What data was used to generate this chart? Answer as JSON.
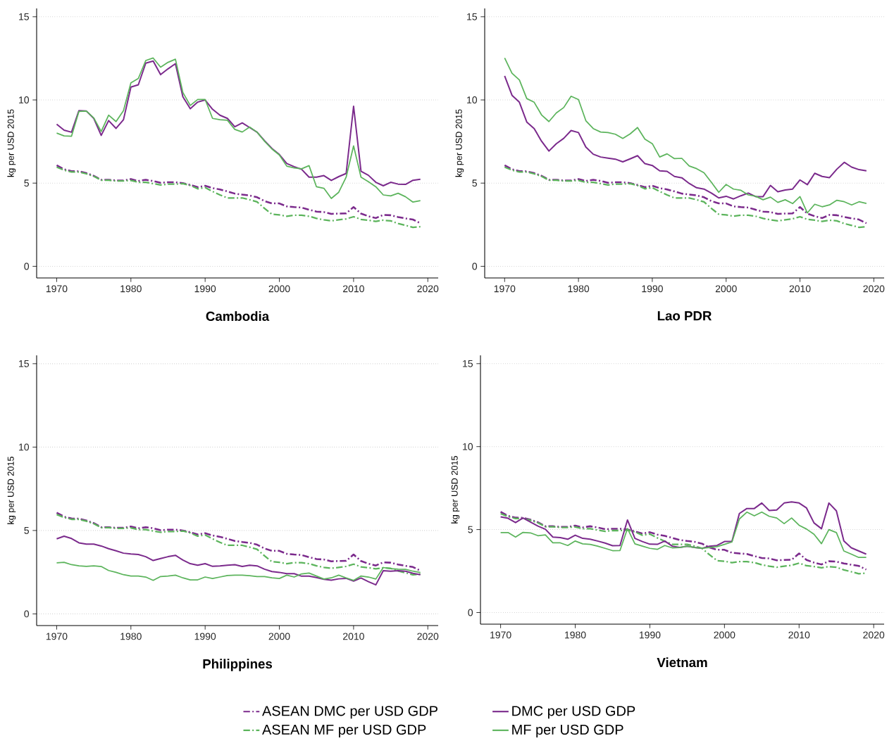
{
  "chart_data": [
    {
      "type": "line",
      "title": "Cambodia",
      "ylabel": "kg per USD 2015",
      "xlim": [
        1967.3,
        2021.4
      ],
      "ylim": [
        -0.7,
        15.5
      ],
      "xticks": [
        1970,
        1980,
        1990,
        2000,
        2010,
        2020
      ],
      "yticks": [
        0,
        5,
        10,
        15
      ],
      "grid": "y",
      "x": [
        1970,
        1971,
        1972,
        1973,
        1974,
        1975,
        1976,
        1977,
        1978,
        1979,
        1980,
        1981,
        1982,
        1983,
        1984,
        1985,
        1986,
        1987,
        1988,
        1989,
        1990,
        1991,
        1992,
        1993,
        1994,
        1995,
        1996,
        1997,
        1998,
        1999,
        2000,
        2001,
        2002,
        2003,
        2004,
        2005,
        2006,
        2007,
        2008,
        2009,
        2010,
        2011,
        2012,
        2013,
        2014,
        2015,
        2016,
        2017,
        2018,
        2019
      ],
      "series": [
        {
          "color": "#7b2a8c",
          "line_style": "dashed",
          "values": [
            6.07,
            5.83,
            5.72,
            5.71,
            5.6,
            5.44,
            5.2,
            5.2,
            5.16,
            5.16,
            5.24,
            5.13,
            5.2,
            5.13,
            5.02,
            5.05,
            5.05,
            5.0,
            4.89,
            4.76,
            4.84,
            4.7,
            4.62,
            4.5,
            4.37,
            4.31,
            4.26,
            4.15,
            3.92,
            3.78,
            3.78,
            3.6,
            3.56,
            3.53,
            3.4,
            3.29,
            3.26,
            3.15,
            3.17,
            3.18,
            3.56,
            3.17,
            3.01,
            2.9,
            3.09,
            3.07,
            2.96,
            2.88,
            2.81,
            2.59
          ]
        },
        {
          "color": "#5cb45c",
          "line_style": "dashed",
          "values": [
            5.96,
            5.78,
            5.67,
            5.67,
            5.56,
            5.41,
            5.17,
            5.17,
            5.13,
            5.13,
            5.16,
            5.05,
            5.05,
            4.97,
            4.89,
            4.94,
            4.94,
            4.97,
            4.86,
            4.66,
            4.73,
            4.5,
            4.29,
            4.11,
            4.11,
            4.11,
            4.0,
            3.87,
            3.48,
            3.13,
            3.09,
            3.01,
            3.07,
            3.07,
            3.01,
            2.88,
            2.79,
            2.73,
            2.79,
            2.85,
            2.98,
            2.82,
            2.77,
            2.7,
            2.77,
            2.73,
            2.57,
            2.46,
            2.34,
            2.38
          ]
        },
        {
          "color": "#7b2a8c",
          "line_style": "solid",
          "values": [
            8.54,
            8.18,
            8.06,
            9.36,
            9.33,
            8.89,
            7.87,
            8.76,
            8.29,
            8.81,
            10.77,
            10.91,
            12.21,
            12.34,
            11.52,
            11.87,
            12.18,
            10.19,
            9.47,
            9.87,
            10.0,
            9.44,
            9.08,
            8.89,
            8.39,
            8.62,
            8.34,
            8.06,
            7.55,
            7.08,
            6.72,
            6.18,
            5.99,
            5.83,
            5.36,
            5.36,
            5.45,
            5.16,
            5.39,
            5.58,
            9.62,
            5.71,
            5.47,
            5.05,
            4.84,
            5.05,
            4.94,
            4.92,
            5.17,
            5.23
          ]
        },
        {
          "color": "#5cb45c",
          "line_style": "solid",
          "values": [
            8.01,
            7.84,
            7.82,
            9.31,
            9.33,
            8.92,
            8.1,
            9.09,
            8.7,
            9.36,
            11.03,
            11.29,
            12.37,
            12.52,
            11.97,
            12.26,
            12.45,
            10.45,
            9.67,
            10.03,
            10.03,
            8.89,
            8.81,
            8.78,
            8.23,
            8.07,
            8.37,
            8.06,
            7.52,
            7.05,
            6.69,
            6.02,
            5.91,
            5.86,
            6.05,
            4.78,
            4.69,
            4.08,
            4.45,
            5.36,
            7.24,
            5.36,
            5.08,
            4.78,
            4.29,
            4.23,
            4.39,
            4.18,
            3.86,
            3.95
          ]
        }
      ]
    },
    {
      "type": "line",
      "title": "Lao PDR",
      "ylabel": "kg per USD 2015",
      "xlim": [
        1967.3,
        2021.4
      ],
      "ylim": [
        -0.7,
        15.5
      ],
      "xticks": [
        1970,
        1980,
        1990,
        2000,
        2010,
        2020
      ],
      "yticks": [
        0,
        5,
        10,
        15
      ],
      "grid": "y",
      "x": [
        1970,
        1971,
        1972,
        1973,
        1974,
        1975,
        1976,
        1977,
        1978,
        1979,
        1980,
        1981,
        1982,
        1983,
        1984,
        1985,
        1986,
        1987,
        1988,
        1989,
        1990,
        1991,
        1992,
        1993,
        1994,
        1995,
        1996,
        1997,
        1998,
        1999,
        2000,
        2001,
        2002,
        2003,
        2004,
        2005,
        2006,
        2007,
        2008,
        2009,
        2010,
        2011,
        2012,
        2013,
        2014,
        2015,
        2016,
        2017,
        2018,
        2019
      ],
      "series": [
        {
          "color": "#7b2a8c",
          "line_style": "dashed",
          "values": [
            6.07,
            5.83,
            5.72,
            5.71,
            5.6,
            5.44,
            5.2,
            5.2,
            5.16,
            5.16,
            5.24,
            5.13,
            5.2,
            5.13,
            5.02,
            5.05,
            5.05,
            5.0,
            4.89,
            4.76,
            4.84,
            4.7,
            4.62,
            4.5,
            4.37,
            4.31,
            4.26,
            4.15,
            3.92,
            3.78,
            3.78,
            3.6,
            3.56,
            3.53,
            3.4,
            3.29,
            3.26,
            3.15,
            3.17,
            3.18,
            3.56,
            3.17,
            3.01,
            2.9,
            3.09,
            3.07,
            2.96,
            2.88,
            2.81,
            2.59
          ]
        },
        {
          "color": "#5cb45c",
          "line_style": "dashed",
          "values": [
            5.96,
            5.78,
            5.67,
            5.67,
            5.56,
            5.41,
            5.17,
            5.17,
            5.13,
            5.13,
            5.16,
            5.05,
            5.05,
            4.97,
            4.89,
            4.94,
            4.94,
            4.97,
            4.86,
            4.66,
            4.73,
            4.5,
            4.29,
            4.11,
            4.11,
            4.11,
            4.0,
            3.87,
            3.48,
            3.13,
            3.09,
            3.01,
            3.07,
            3.07,
            3.01,
            2.88,
            2.79,
            2.73,
            2.79,
            2.85,
            2.98,
            2.82,
            2.77,
            2.7,
            2.77,
            2.73,
            2.57,
            2.46,
            2.34,
            2.38
          ]
        },
        {
          "color": "#7b2a8c",
          "line_style": "solid",
          "values": [
            11.44,
            10.28,
            9.86,
            8.67,
            8.28,
            7.52,
            6.93,
            7.37,
            7.69,
            8.16,
            8.04,
            7.17,
            6.74,
            6.57,
            6.5,
            6.44,
            6.28,
            6.46,
            6.65,
            6.17,
            6.06,
            5.74,
            5.71,
            5.4,
            5.32,
            4.98,
            4.72,
            4.64,
            4.4,
            4.11,
            4.21,
            4.05,
            4.24,
            4.4,
            4.19,
            4.19,
            4.86,
            4.48,
            4.59,
            4.64,
            5.19,
            4.91,
            5.59,
            5.4,
            5.33,
            5.84,
            6.25,
            5.96,
            5.81,
            5.74
          ]
        },
        {
          "color": "#5cb45c",
          "line_style": "solid",
          "values": [
            12.52,
            11.6,
            11.2,
            10.08,
            9.86,
            9.1,
            8.7,
            9.22,
            9.54,
            10.22,
            10.02,
            8.75,
            8.28,
            8.07,
            8.04,
            7.94,
            7.69,
            7.96,
            8.34,
            7.64,
            7.37,
            6.57,
            6.76,
            6.47,
            6.49,
            6.03,
            5.87,
            5.62,
            5.05,
            4.45,
            4.92,
            4.64,
            4.57,
            4.29,
            4.21,
            4.0,
            4.16,
            3.84,
            4.0,
            3.77,
            4.19,
            3.21,
            3.73,
            3.58,
            3.69,
            3.97,
            3.88,
            3.69,
            3.88,
            3.78
          ]
        }
      ]
    },
    {
      "type": "line",
      "title": "Philippines",
      "ylabel": "kg per USD 2015",
      "xlim": [
        1967.3,
        2021.4
      ],
      "ylim": [
        -0.7,
        15.5
      ],
      "xticks": [
        1970,
        1980,
        1990,
        2000,
        2010,
        2020
      ],
      "yticks": [
        0,
        5,
        10,
        15
      ],
      "grid": "y",
      "x": [
        1970,
        1971,
        1972,
        1973,
        1974,
        1975,
        1976,
        1977,
        1978,
        1979,
        1980,
        1981,
        1982,
        1983,
        1984,
        1985,
        1986,
        1987,
        1988,
        1989,
        1990,
        1991,
        1992,
        1993,
        1994,
        1995,
        1996,
        1997,
        1998,
        1999,
        2000,
        2001,
        2002,
        2003,
        2004,
        2005,
        2006,
        2007,
        2008,
        2009,
        2010,
        2011,
        2012,
        2013,
        2014,
        2015,
        2016,
        2017,
        2018,
        2019
      ],
      "series": [
        {
          "color": "#7b2a8c",
          "line_style": "dashed",
          "values": [
            6.07,
            5.83,
            5.72,
            5.71,
            5.6,
            5.44,
            5.2,
            5.2,
            5.16,
            5.16,
            5.24,
            5.13,
            5.2,
            5.13,
            5.02,
            5.05,
            5.05,
            5.0,
            4.89,
            4.76,
            4.84,
            4.7,
            4.62,
            4.5,
            4.37,
            4.31,
            4.26,
            4.15,
            3.92,
            3.78,
            3.78,
            3.6,
            3.56,
            3.53,
            3.4,
            3.29,
            3.26,
            3.15,
            3.17,
            3.18,
            3.56,
            3.17,
            3.01,
            2.9,
            3.09,
            3.07,
            2.96,
            2.88,
            2.81,
            2.59
          ]
        },
        {
          "color": "#5cb45c",
          "line_style": "dashed",
          "values": [
            5.96,
            5.78,
            5.67,
            5.67,
            5.56,
            5.41,
            5.17,
            5.17,
            5.13,
            5.13,
            5.16,
            5.05,
            5.05,
            4.97,
            4.89,
            4.94,
            4.94,
            4.97,
            4.86,
            4.66,
            4.73,
            4.5,
            4.29,
            4.11,
            4.11,
            4.11,
            4.0,
            3.87,
            3.48,
            3.13,
            3.09,
            3.01,
            3.07,
            3.07,
            3.01,
            2.88,
            2.79,
            2.73,
            2.79,
            2.85,
            2.98,
            2.82,
            2.77,
            2.7,
            2.77,
            2.73,
            2.57,
            2.46,
            2.34,
            2.38
          ]
        },
        {
          "color": "#7b2a8c",
          "line_style": "solid",
          "values": [
            4.5,
            4.66,
            4.52,
            4.26,
            4.18,
            4.18,
            4.07,
            3.91,
            3.78,
            3.64,
            3.59,
            3.56,
            3.43,
            3.2,
            3.32,
            3.43,
            3.51,
            3.23,
            3.01,
            2.92,
            3.01,
            2.85,
            2.88,
            2.92,
            2.95,
            2.84,
            2.92,
            2.88,
            2.68,
            2.54,
            2.49,
            2.41,
            2.41,
            2.26,
            2.26,
            2.18,
            2.07,
            2.02,
            2.1,
            2.13,
            1.97,
            2.15,
            1.93,
            1.74,
            2.59,
            2.56,
            2.59,
            2.56,
            2.43,
            2.35
          ]
        },
        {
          "color": "#5cb45c",
          "line_style": "solid",
          "values": [
            3.06,
            3.09,
            2.95,
            2.88,
            2.85,
            2.88,
            2.84,
            2.6,
            2.49,
            2.35,
            2.27,
            2.27,
            2.21,
            2.01,
            2.24,
            2.27,
            2.32,
            2.16,
            2.04,
            2.04,
            2.21,
            2.12,
            2.21,
            2.3,
            2.32,
            2.32,
            2.29,
            2.24,
            2.24,
            2.16,
            2.12,
            2.32,
            2.21,
            2.4,
            2.45,
            2.27,
            2.09,
            2.16,
            2.32,
            2.16,
            2.01,
            2.27,
            2.21,
            2.09,
            2.78,
            2.71,
            2.68,
            2.67,
            2.56,
            2.48
          ]
        }
      ]
    },
    {
      "type": "line",
      "title": "Vietnam",
      "ylabel": "kg per USD 2015",
      "xlim": [
        1967.3,
        2021.4
      ],
      "ylim": [
        -0.7,
        15.5
      ],
      "xticks": [
        1970,
        1980,
        1990,
        2000,
        2010,
        2020
      ],
      "yticks": [
        0,
        5,
        10,
        15
      ],
      "grid": "y",
      "legend": "bottom",
      "x": [
        1970,
        1971,
        1972,
        1973,
        1974,
        1975,
        1976,
        1977,
        1978,
        1979,
        1980,
        1981,
        1982,
        1983,
        1984,
        1985,
        1986,
        1987,
        1988,
        1989,
        1990,
        1991,
        1992,
        1993,
        1994,
        1995,
        1996,
        1997,
        1998,
        1999,
        2000,
        2001,
        2002,
        2003,
        2004,
        2005,
        2006,
        2007,
        2008,
        2009,
        2010,
        2011,
        2012,
        2013,
        2014,
        2015,
        2016,
        2017,
        2018,
        2019
      ],
      "series": [
        {
          "name": "ASEAN DMC per USD GDP",
          "color": "#7b2a8c",
          "line_style": "dashed",
          "values": [
            6.07,
            5.83,
            5.72,
            5.71,
            5.6,
            5.44,
            5.2,
            5.2,
            5.16,
            5.16,
            5.24,
            5.13,
            5.2,
            5.13,
            5.02,
            5.05,
            5.05,
            5.0,
            4.89,
            4.76,
            4.84,
            4.7,
            4.62,
            4.5,
            4.37,
            4.31,
            4.26,
            4.15,
            3.92,
            3.78,
            3.78,
            3.6,
            3.56,
            3.53,
            3.4,
            3.29,
            3.26,
            3.15,
            3.17,
            3.18,
            3.56,
            3.17,
            3.01,
            2.9,
            3.09,
            3.07,
            2.96,
            2.88,
            2.81,
            2.59
          ]
        },
        {
          "name": "ASEAN MF per USD GDP",
          "color": "#5cb45c",
          "line_style": "dashed",
          "values": [
            5.96,
            5.78,
            5.67,
            5.67,
            5.56,
            5.41,
            5.17,
            5.17,
            5.13,
            5.13,
            5.16,
            5.05,
            5.05,
            4.97,
            4.89,
            4.94,
            4.94,
            4.97,
            4.86,
            4.66,
            4.73,
            4.5,
            4.29,
            4.11,
            4.11,
            4.11,
            4.0,
            3.87,
            3.48,
            3.13,
            3.09,
            3.01,
            3.07,
            3.07,
            3.01,
            2.88,
            2.79,
            2.73,
            2.79,
            2.85,
            2.98,
            2.82,
            2.77,
            2.7,
            2.77,
            2.73,
            2.57,
            2.46,
            2.34,
            2.38
          ]
        },
        {
          "name": "DMC per USD GDP",
          "color": "#7b2a8c",
          "line_style": "solid",
          "values": [
            5.77,
            5.68,
            5.42,
            5.7,
            5.45,
            5.21,
            5.02,
            4.55,
            4.52,
            4.42,
            4.66,
            4.47,
            4.42,
            4.31,
            4.19,
            4.03,
            4.04,
            5.58,
            4.47,
            4.28,
            4.12,
            4.11,
            4.31,
            4.0,
            3.92,
            4.0,
            3.92,
            3.87,
            4.0,
            4.04,
            4.28,
            4.28,
            5.97,
            6.27,
            6.27,
            6.6,
            6.15,
            6.18,
            6.6,
            6.67,
            6.6,
            6.3,
            5.4,
            5.05,
            6.6,
            6.13,
            4.31,
            3.9,
            3.71,
            3.52
          ]
        },
        {
          "name": "MF per USD GDP",
          "color": "#5cb45c",
          "line_style": "solid",
          "values": [
            4.82,
            4.82,
            4.55,
            4.83,
            4.8,
            4.63,
            4.68,
            4.2,
            4.2,
            4.04,
            4.31,
            4.14,
            4.11,
            4.0,
            3.87,
            3.73,
            3.74,
            5.06,
            4.14,
            4.0,
            3.87,
            3.81,
            4.04,
            3.9,
            3.92,
            4.0,
            3.92,
            3.87,
            3.92,
            3.97,
            4.11,
            4.25,
            5.64,
            6.05,
            5.83,
            6.05,
            5.8,
            5.7,
            5.36,
            5.7,
            5.26,
            5.03,
            4.72,
            4.15,
            5.0,
            4.82,
            3.71,
            3.52,
            3.32,
            3.32
          ]
        }
      ]
    }
  ]
}
